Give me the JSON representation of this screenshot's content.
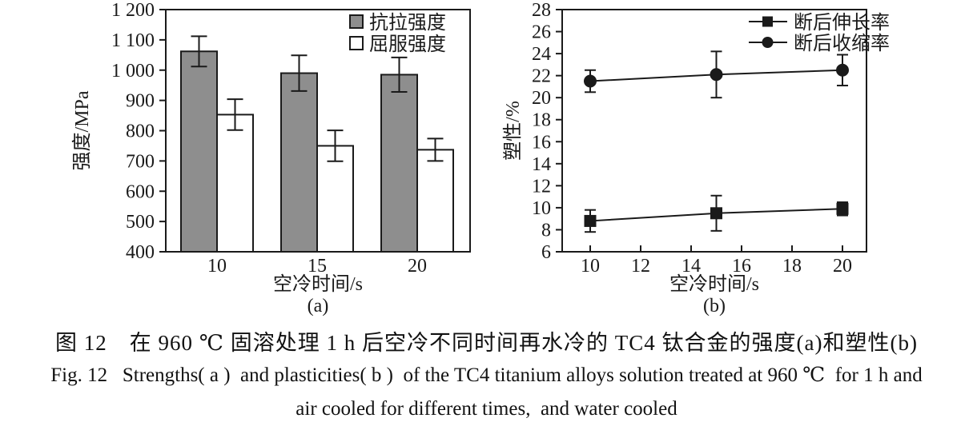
{
  "style": {
    "ink": "#1a1a1a",
    "bar_fill": "#8e8e8e",
    "background": "#ffffff"
  },
  "figure": {
    "caption_zh": "图 12　在 960 ℃ 固溶处理 1 h 后空冷不同时间再水冷的 TC4 钛合金的强度(a)和塑性(b)",
    "caption_en_line1": "Fig. 12   Strengths( a )  and plasticities( b )  of the TC4 titanium alloys solution treated at 960 ℃  for 1 h and",
    "caption_en_line2": "air cooled for different times,  and water cooled"
  },
  "chart_data": [
    {
      "id": "strength",
      "type": "bar",
      "panel_label": "(a)",
      "xlabel": "空冷时间/s",
      "ylabel": "强度/MPa",
      "ylim": [
        400,
        1200
      ],
      "yticks": [
        400,
        500,
        600,
        700,
        800,
        900,
        1000,
        1100,
        1200
      ],
      "ytick_labels": [
        "400",
        "500",
        "600",
        "700",
        "800",
        "900",
        "1 000",
        "1 100",
        "1 200"
      ],
      "categories": [
        "10",
        "15",
        "20"
      ],
      "legend_position": "top-right",
      "grid": false,
      "series": [
        {
          "name": "抗拉强度",
          "style": "filled",
          "values": [
            1062,
            990,
            985
          ],
          "errors": [
            50,
            59,
            57
          ]
        },
        {
          "name": "屈服强度",
          "style": "open",
          "values": [
            853,
            750,
            737
          ],
          "errors": [
            51,
            51,
            37
          ]
        }
      ]
    },
    {
      "id": "plasticity",
      "type": "line",
      "panel_label": "(b)",
      "xlabel": "空冷时间/s",
      "ylabel": "塑性/%",
      "ylim": [
        6,
        28
      ],
      "yticks": [
        6,
        8,
        10,
        12,
        14,
        16,
        18,
        20,
        22,
        24,
        26,
        28
      ],
      "xticks": [
        10,
        12,
        14,
        16,
        18,
        20
      ],
      "x": [
        10,
        15,
        20
      ],
      "legend_position": "top-right",
      "grid": false,
      "series": [
        {
          "name": "断后伸长率",
          "marker": "square",
          "values": [
            8.8,
            9.5,
            9.9
          ],
          "errors": [
            1.0,
            1.6,
            0.6
          ]
        },
        {
          "name": "断后收缩率",
          "marker": "circle",
          "values": [
            21.5,
            22.1,
            22.5
          ],
          "errors": [
            1.0,
            2.1,
            1.4
          ]
        }
      ]
    }
  ]
}
